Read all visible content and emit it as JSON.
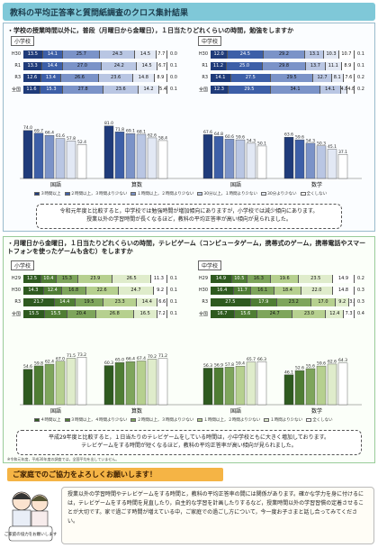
{
  "title": "教科の平均正答率と質問紙調査のクロス集計結果",
  "section1": {
    "question": "・学校の授業時間以外に，普段（月曜日から金曜日），１日当たりどれくらいの時間，勉強をしますか",
    "elementary_tag": "小学校",
    "junior_tag": "中学校",
    "elementary_rows": [
      {
        "label": "H30",
        "values": [
          13.5,
          14.1,
          25.7,
          24.3,
          14.5,
          7.7
        ],
        "tail": "0.0"
      },
      {
        "label": "R1",
        "values": [
          13.3,
          14.4,
          27.0,
          24.2,
          14.5,
          6.7
        ],
        "tail": "0.1"
      },
      {
        "label": "R3",
        "values": [
          12.6,
          13.4,
          26.6,
          23.6,
          14.8,
          8.9
        ],
        "tail": "0.0"
      },
      {
        "label": "全国",
        "values": [
          11.6,
          15.3,
          27.8,
          23.6,
          14.2,
          5.4
        ],
        "tail": "0.1"
      }
    ],
    "junior_rows": [
      {
        "label": "H30",
        "values": [
          12.0,
          24.5,
          29.2,
          13.1,
          10.3,
          10.7
        ],
        "tail": "0.1"
      },
      {
        "label": "R1",
        "values": [
          11.2,
          25.0,
          29.8,
          13.7,
          11.1,
          8.9
        ],
        "tail": "0.1"
      },
      {
        "label": "R3",
        "values": [
          14.1,
          27.5,
          29.5,
          12.7,
          8.1,
          7.6
        ],
        "tail": "0.2"
      },
      {
        "label": "全国",
        "values": [
          12.3,
          29.5,
          34.1,
          14.1,
          4.8,
          4.8
        ],
        "tail": "0.2"
      }
    ],
    "colors": [
      "#1f3b7a",
      "#3d5fa8",
      "#7b93c8",
      "#b9c6e3",
      "#e2e8f4",
      "#ffffff"
    ],
    "legend": [
      "３時間以上",
      "２時間以上，３時間より少ない",
      "１時間以上，２時間より少ない",
      "30分以上，１時間より少ない",
      "30分より少ない",
      "全くしない"
    ],
    "bar_groups": [
      {
        "subject": "国語",
        "values": [
          74.0,
          69.7,
          66.4,
          61.6,
          57.8,
          52.4
        ]
      },
      {
        "subject": "算数",
        "values": [
          81.0,
          71.8,
          69.1,
          68.1,
          62.6,
          58.4
        ]
      },
      {
        "subject": "国語",
        "values": [
          67.6,
          64.8,
          60.6,
          59.6,
          54.3,
          50.1
        ]
      },
      {
        "subject": "数学",
        "values": [
          63.6,
          59.6,
          54.3,
          50.3,
          45.1,
          37.1
        ]
      }
    ],
    "note_lines": [
      "令和元年度と比較すると，中学校では勉強時間が増加傾向にありますが，小学校では減少傾向にあります。",
      "授業以外の学習時間が長くなるほど，教科の平均正答率が高い傾向が見られました。"
    ]
  },
  "section2": {
    "question": "・月曜日から金曜日，１日当たりどれくらいの時間，テレビゲーム（コンピュータゲーム，携帯式のゲーム，携帯電話やスマートフォンを使ったゲームも含む）をしますか",
    "elementary_tag": "小学校",
    "junior_tag": "中学校",
    "elementary_rows": [
      {
        "label": "H29",
        "values": [
          12.5,
          10.4,
          15.3,
          23.9,
          26.5,
          11.3
        ],
        "tail": "0.1"
      },
      {
        "label": "H30",
        "values": [
          14.3,
          12.4,
          16.8,
          22.6,
          24.7,
          9.2
        ],
        "tail": "0.1"
      },
      {
        "label": "R3",
        "values": [
          21.7,
          14.4,
          19.5,
          23.3,
          14.4,
          6.6
        ],
        "tail": "0.1"
      },
      {
        "label": "全国",
        "values": [
          15.5,
          15.5,
          20.4,
          26.8,
          16.5,
          7.2
        ],
        "tail": "0.1"
      }
    ],
    "junior_rows": [
      {
        "label": "H29",
        "values": [
          14.9,
          10.5,
          16.3,
          19.6,
          23.5,
          14.9
        ],
        "tail": "0.2"
      },
      {
        "label": "H30",
        "values": [
          16.4,
          11.7,
          16.1,
          18.4,
          22.0,
          14.8
        ],
        "tail": "0.3"
      },
      {
        "label": "R3",
        "values": [
          27.5,
          17.9,
          23.2,
          17.0,
          9.2,
          3.5
        ],
        "tail": "0.3"
      },
      {
        "label": "全国",
        "values": [
          16.7,
          15.6,
          24.7,
          23.0,
          12.4,
          7.3
        ],
        "tail": "0.4"
      }
    ],
    "colors": [
      "#2e5a1f",
      "#4f7d34",
      "#7ea55c",
      "#b6d08f",
      "#dfeccb",
      "#ffffff"
    ],
    "legend": [
      "４時間以上",
      "３時間以上，４時間より少ない",
      "２時間以上，３時間より少ない",
      "１時間以上，２時間より少ない",
      "１時間より少ない",
      "全くしない"
    ],
    "bar_groups": [
      {
        "subject": "国語",
        "values": [
          54.6,
          59.8,
          62.4,
          67.0,
          71.5,
          73.2
        ]
      },
      {
        "subject": "算数",
        "values": [
          60.3,
          65.0,
          66.4,
          67.4,
          70.2,
          71.2
        ]
      },
      {
        "subject": "国語",
        "values": [
          56.3,
          56.9,
          57.8,
          59.4,
          65.7,
          66.3
        ]
      },
      {
        "subject": "数学",
        "values": [
          46.1,
          52.6,
          55.6,
          59.6,
          62.6,
          64.3
        ]
      }
    ],
    "note_lines": [
      "平成29年度と比較すると，１日当たりのテレビゲームをしている時間は，小中学校ともに大きく増加しております。",
      "テレビゲームをする時間が短くなるほど，教科の平均正答率が高い傾向が見られました。"
    ]
  },
  "footnote": "※令和元年度，平成30年度の調査では，全国平均を出していません。",
  "cooperate": "ご家庭でのご協力をよろしくお願いします！",
  "final_text": "授業以外の学習時間やテレビゲームをする時間と，教科の平均正答率の間には関係があります。確かな学力を身に付けるには，テレビゲームをする時間を見直したり，自主的な学習を計画したりするなど，授業時間以外の学習習慣の定着させることが大切です。家で過ごす時間が増えている中，ご家庭での過ごし方について，今一度お子さまと話し合ってみてください。",
  "illustration_label": "ご家庭の協力をお願いします"
}
